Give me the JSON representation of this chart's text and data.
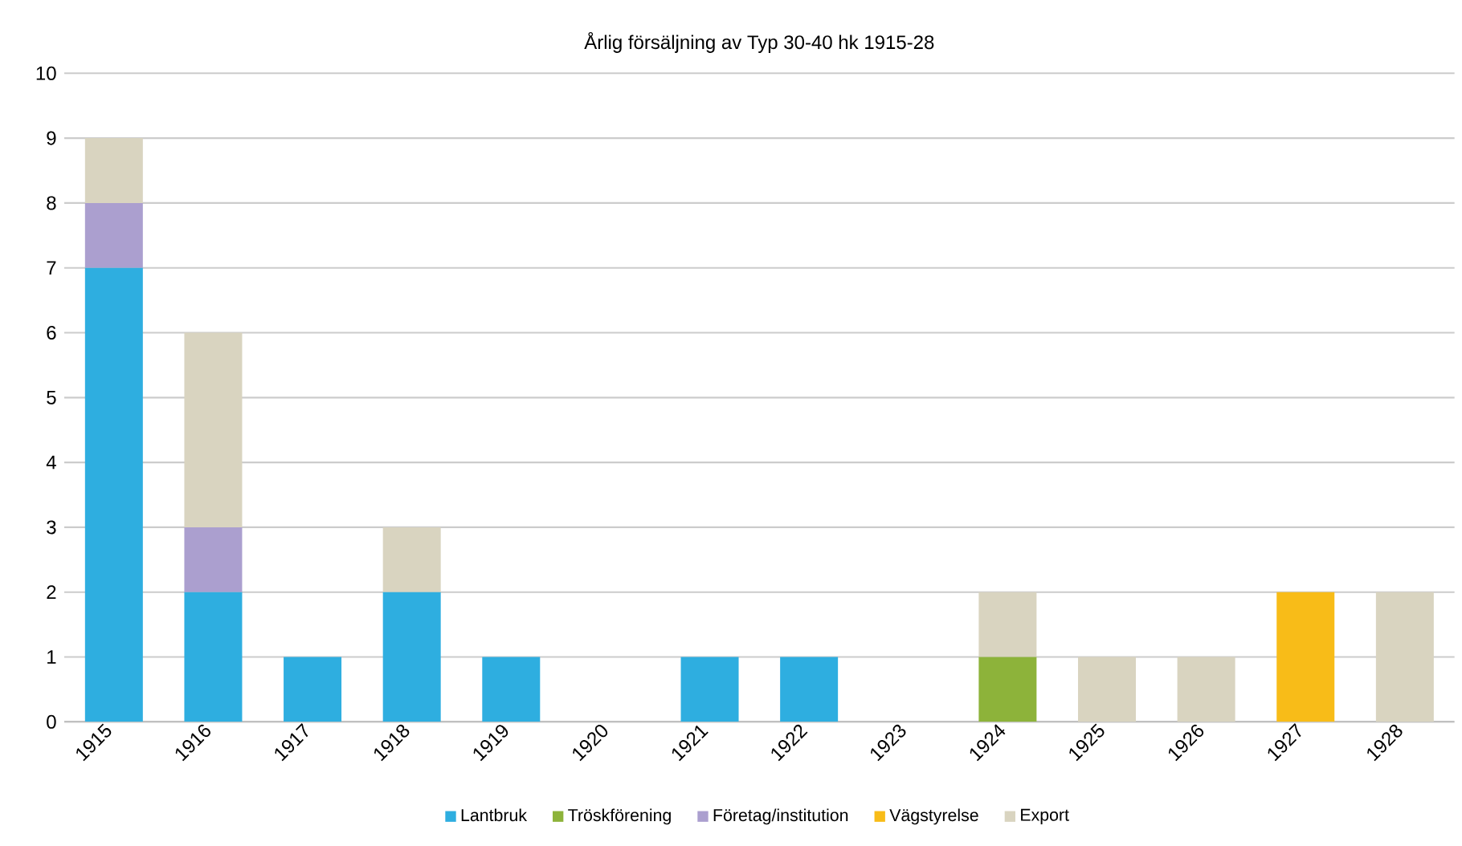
{
  "chart_data": {
    "type": "bar",
    "stacked": true,
    "title": "Årlig försäljning av Typ 30-40 hk 1915-28",
    "categories": [
      "1915",
      "1916",
      "1917",
      "1918",
      "1919",
      "1920",
      "1921",
      "1922",
      "1923",
      "1924",
      "1925",
      "1926",
      "1927",
      "1928"
    ],
    "series": [
      {
        "name": "Lantbruk",
        "color": "#2eaee0",
        "values": [
          7,
          2,
          1,
          2,
          1,
          0,
          1,
          1,
          0,
          0,
          0,
          0,
          0,
          0
        ]
      },
      {
        "name": "Tröskförening",
        "color": "#8db33a",
        "values": [
          0,
          0,
          0,
          0,
          0,
          0,
          0,
          0,
          0,
          1,
          0,
          0,
          0,
          0
        ]
      },
      {
        "name": "Företag/institution",
        "color": "#ab9fcf",
        "values": [
          1,
          1,
          0,
          0,
          0,
          0,
          0,
          0,
          0,
          0,
          0,
          0,
          0,
          0
        ]
      },
      {
        "name": "Vägstyrelse",
        "color": "#f8bc18",
        "values": [
          0,
          0,
          0,
          0,
          0,
          0,
          0,
          0,
          0,
          0,
          0,
          0,
          2,
          0
        ]
      },
      {
        "name": "Export",
        "color": "#d9d4c0",
        "values": [
          1,
          3,
          0,
          1,
          0,
          0,
          0,
          0,
          0,
          1,
          1,
          1,
          0,
          2
        ]
      }
    ],
    "ylim": [
      0,
      10
    ],
    "yticks": [
      0,
      1,
      2,
      3,
      4,
      5,
      6,
      7,
      8,
      9,
      10
    ],
    "grid": "y",
    "legend": "bottom"
  }
}
